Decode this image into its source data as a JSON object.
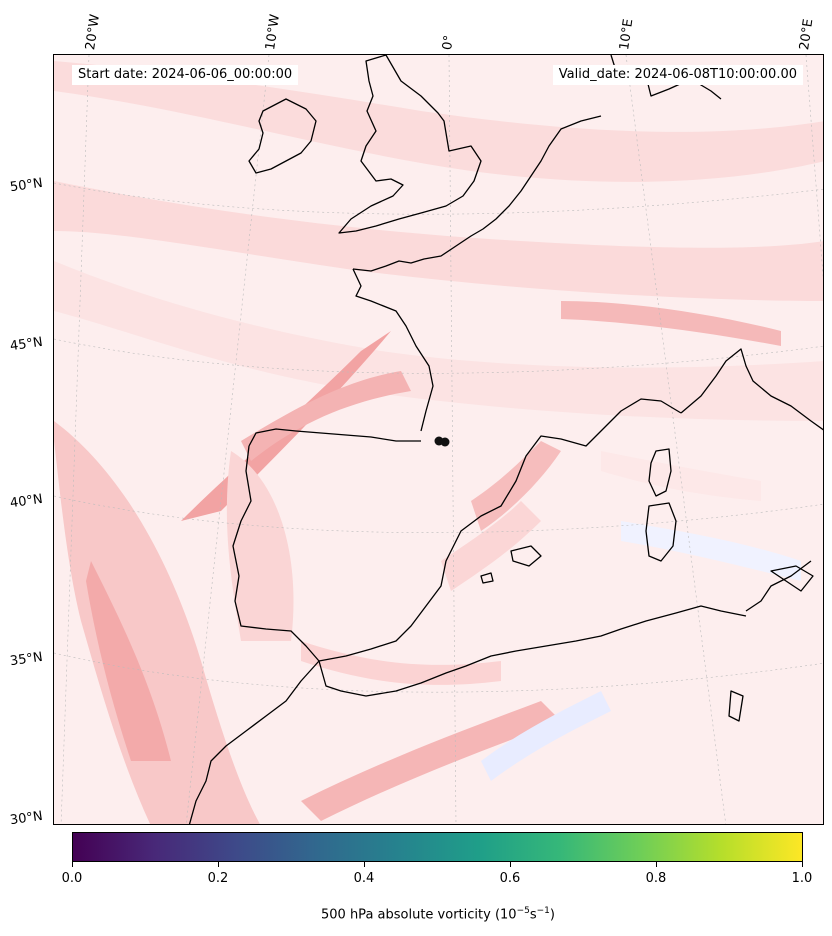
{
  "map": {
    "start_date": "Start date: 2024-06-06_00:00:00",
    "valid_date": "Valid_date: 2024-06-08T10:00:00.00",
    "longitude_labels": [
      "20°W",
      "10°W",
      "0°",
      "10°E",
      "20°E"
    ],
    "latitude_labels": [
      "50°N",
      "45°N",
      "40°N",
      "35°N",
      "30°N"
    ],
    "field": "500 hPa absolute vorticity",
    "colors": {
      "background_field": "#fdf1f1",
      "light_positive": "#fbd9d9",
      "strong_positive": "#f4a9a9",
      "negative": "#e8eeff",
      "coastline": "#000000",
      "marker": "#111111"
    }
  },
  "colorbar": {
    "colormap": "viridis",
    "ticks": [
      "0.0",
      "0.2",
      "0.4",
      "0.6",
      "0.8",
      "1.0"
    ],
    "label_main": "500 hPa absolute vorticity (10",
    "label_exp1": "−5",
    "label_mid": "s",
    "label_exp2": "−1",
    "label_end": ")"
  }
}
